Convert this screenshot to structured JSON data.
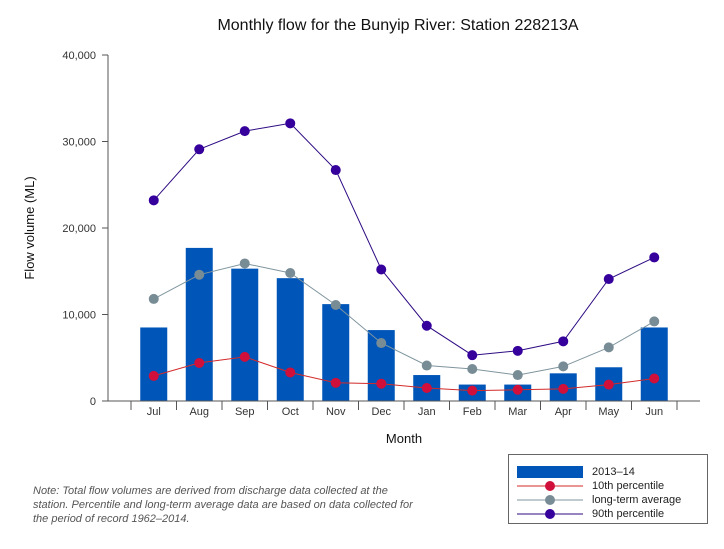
{
  "chart_data": {
    "type": "bar",
    "title": "Monthly flow for the Bunyip River: Station 228213A",
    "xlabel": "Month",
    "ylabel": "Flow volume (ML)",
    "ylim": [
      0,
      40000
    ],
    "yticks": [
      "0",
      "10,000",
      "20,000",
      "30,000",
      "40,000"
    ],
    "categories": [
      "Jul",
      "Aug",
      "Sep",
      "Oct",
      "Nov",
      "Dec",
      "Jan",
      "Feb",
      "Mar",
      "Apr",
      "May",
      "Jun"
    ],
    "grid": false,
    "legend_placement": "bottom-right",
    "series": [
      {
        "name": "2013–14",
        "kind": "bar",
        "color": "#0055b8",
        "values": [
          8500,
          17700,
          15300,
          14200,
          11200,
          8200,
          3000,
          1900,
          1900,
          3200,
          3900,
          8500
        ]
      },
      {
        "name": "10th percentile",
        "kind": "line",
        "color": "#d42a2a",
        "marker_color": "#d0103a",
        "values": [
          2900,
          4400,
          5100,
          3300,
          2100,
          2000,
          1500,
          1200,
          1300,
          1400,
          1900,
          2600
        ]
      },
      {
        "name": "long-term average",
        "kind": "line",
        "color": "#7f959e",
        "marker_color": "#788c96",
        "values": [
          11800,
          14600,
          15900,
          14800,
          11100,
          6700,
          4100,
          3700,
          3000,
          4000,
          6200,
          9200
        ]
      },
      {
        "name": "90th percentile",
        "kind": "line",
        "color": "#2d0a82",
        "marker_color": "#35009b",
        "values": [
          23200,
          29100,
          31200,
          32100,
          26700,
          15200,
          8700,
          5300,
          5800,
          6900,
          14100,
          16600
        ]
      }
    ]
  },
  "note": "Note: Total flow volumes are derived from discharge data collected at the station. Percentile and long-term average data are based on data collected for the period of record 1962–2014."
}
